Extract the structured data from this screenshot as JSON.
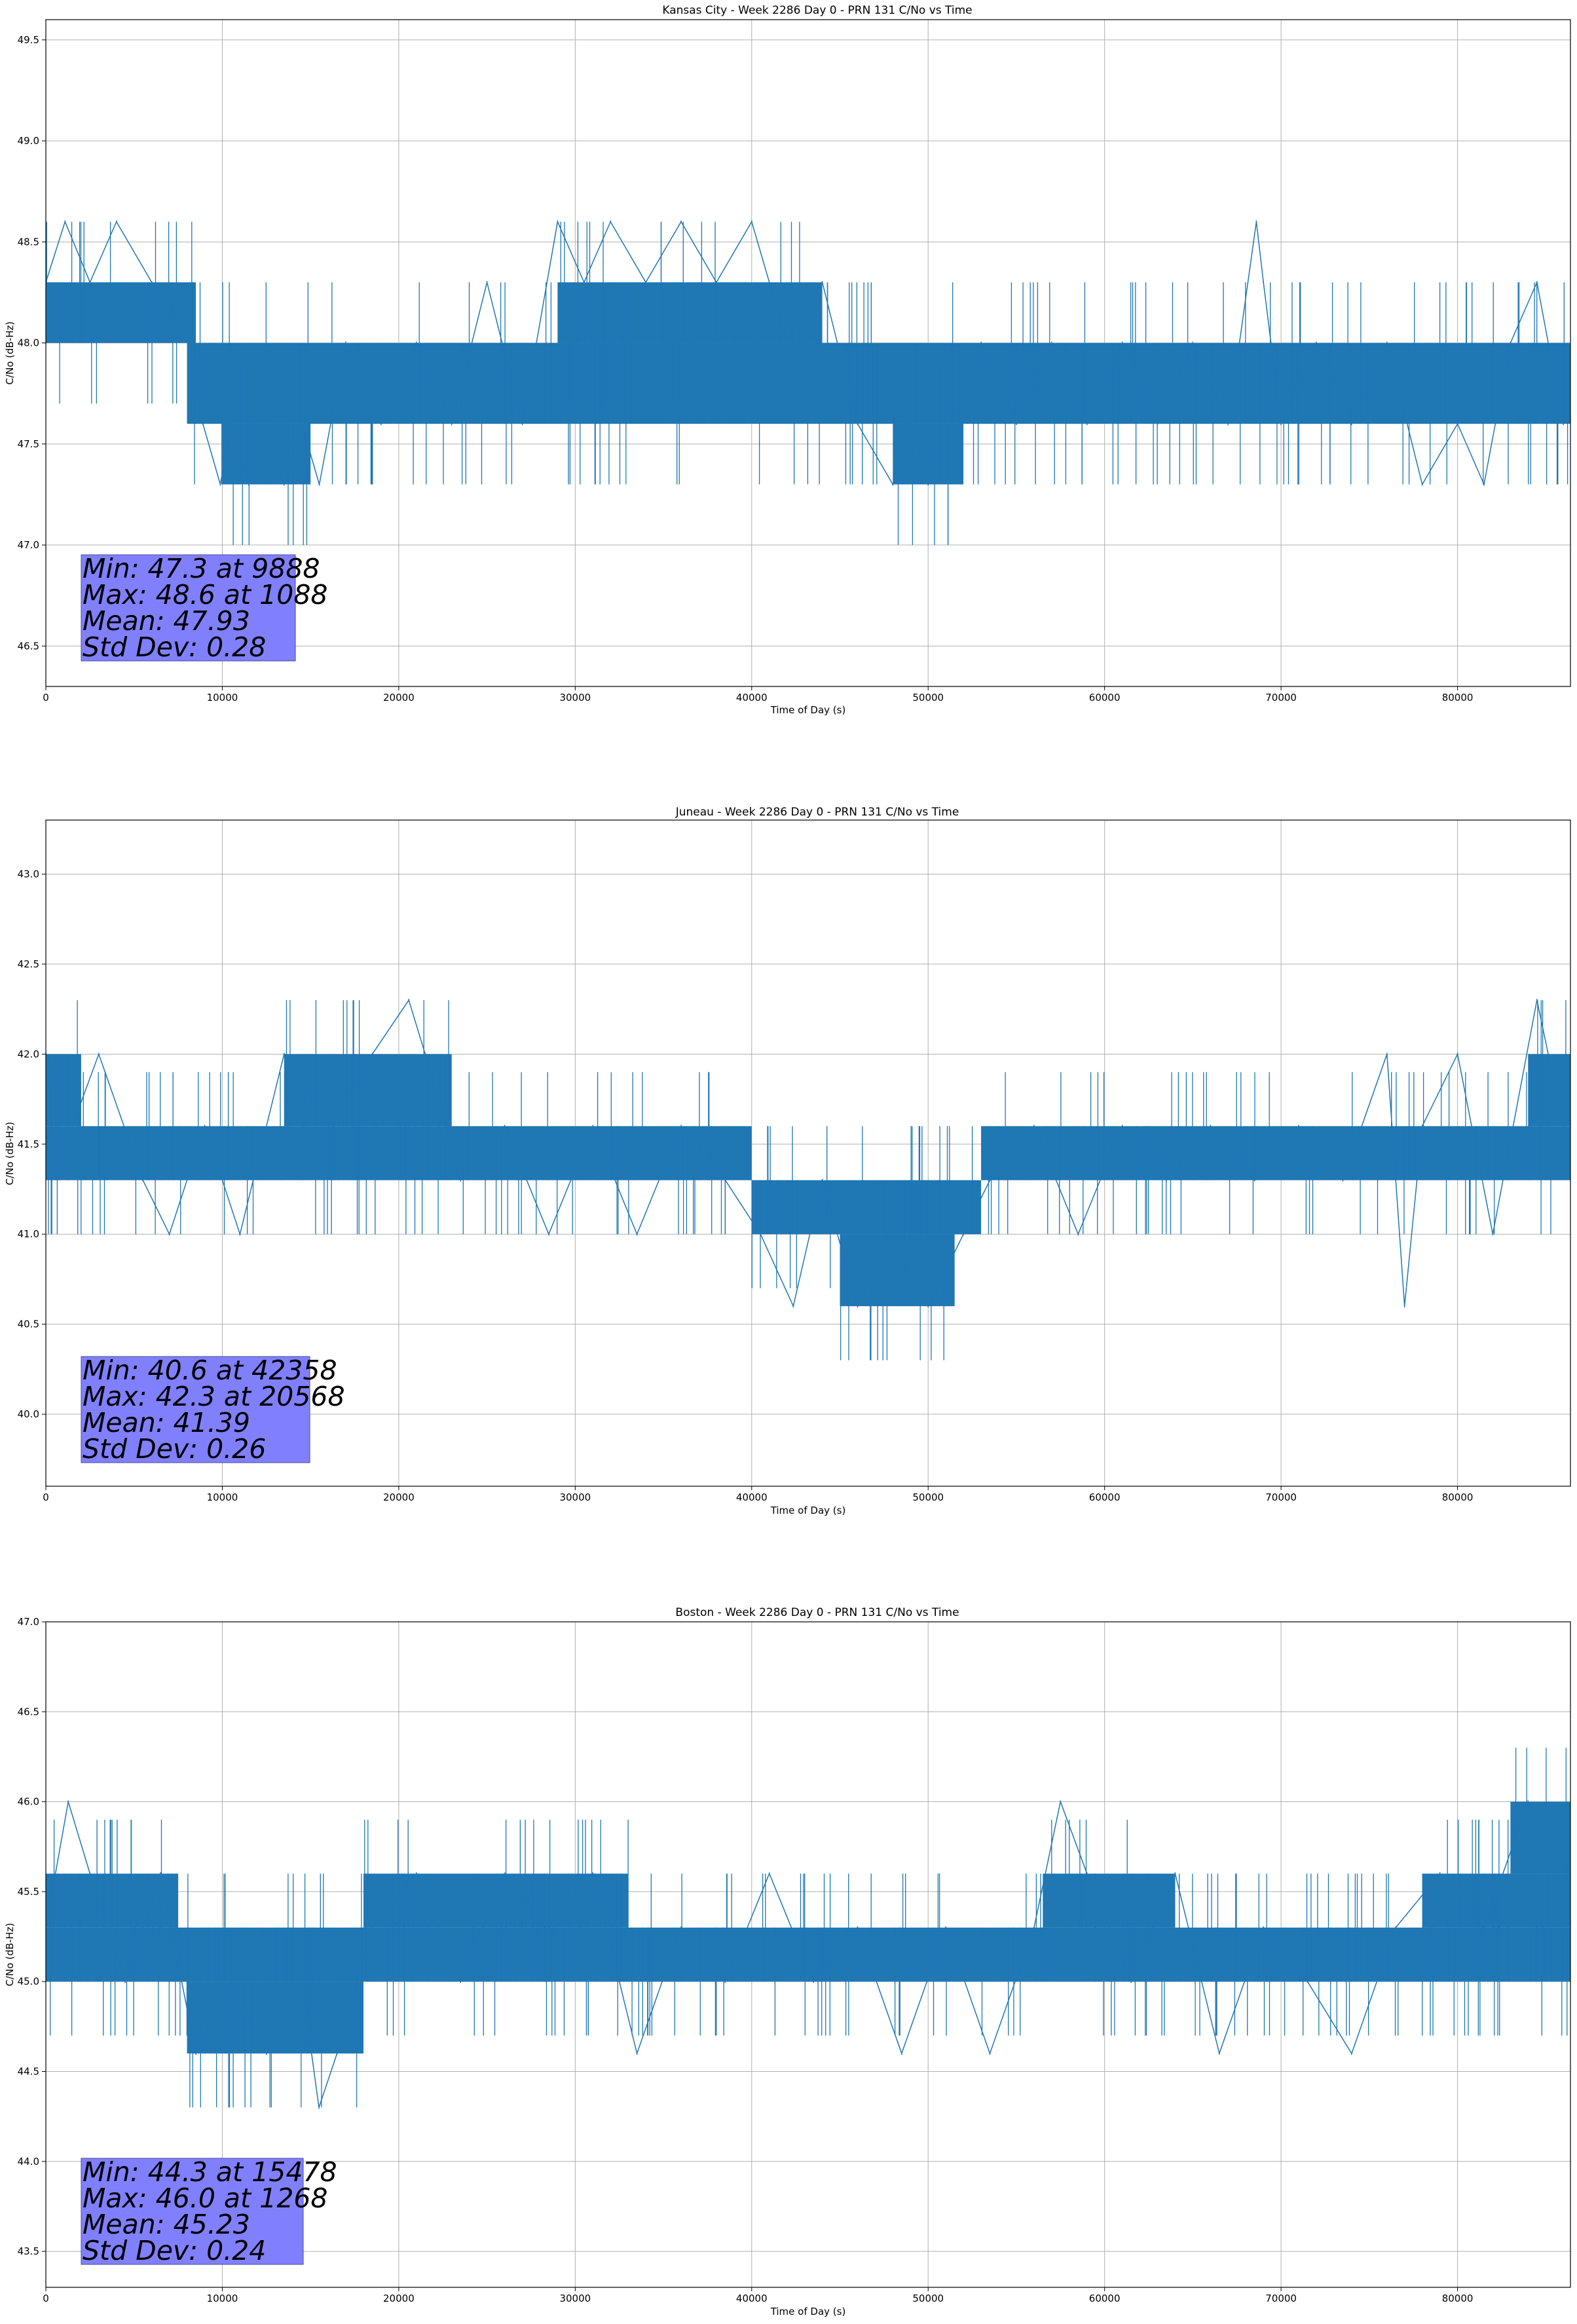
{
  "chart_data": [
    {
      "type": "line",
      "title": "Kansas City - Week 2286 Day 0 - PRN 131 C/No vs Time",
      "xlabel": "Time of Day (s)",
      "ylabel": "C/No (dB-Hz)",
      "xlim": [
        0,
        86400
      ],
      "ylim": [
        46.3,
        49.6
      ],
      "xticks": [
        0,
        10000,
        20000,
        30000,
        40000,
        50000,
        60000,
        70000,
        80000
      ],
      "yticks": [
        "46.5",
        "47.0",
        "47.5",
        "48.0",
        "48.5",
        "49.0",
        "49.5"
      ],
      "grid": true,
      "series_color": "#1f77b4",
      "bands": [
        {
          "x": [
            0,
            8500
          ],
          "y": [
            48.0,
            48.3
          ]
        },
        {
          "x": [
            8000,
            86400
          ],
          "y": [
            47.6,
            48.0
          ]
        },
        {
          "x": [
            29000,
            44000
          ],
          "y": [
            48.0,
            48.3
          ]
        },
        {
          "x": [
            10000,
            15000
          ],
          "y": [
            47.3,
            47.6
          ]
        },
        {
          "x": [
            48000,
            52000
          ],
          "y": [
            47.3,
            47.6
          ]
        }
      ],
      "series": {
        "x": [
          0,
          1088,
          2500,
          4000,
          6000,
          8400,
          8900,
          9888,
          10500,
          11500,
          12500,
          13500,
          14500,
          15500,
          17000,
          19000,
          21000,
          23000,
          25000,
          27000,
          29000,
          30500,
          32000,
          34000,
          36000,
          38000,
          40000,
          42000,
          44000,
          46000,
          48000,
          49000,
          50000,
          51500,
          53000,
          55000,
          57000,
          59000,
          61000,
          63000,
          65000,
          67000,
          68600,
          69000,
          70000,
          72000,
          74000,
          76000,
          78000,
          80000,
          81500,
          83000,
          84500,
          86000
        ],
        "y": [
          48.3,
          48.6,
          48.3,
          48.6,
          48.3,
          48.0,
          47.6,
          47.3,
          47.6,
          47.3,
          47.6,
          47.3,
          47.6,
          47.3,
          48.0,
          47.6,
          48.0,
          47.6,
          48.3,
          47.6,
          48.6,
          48.3,
          48.6,
          48.3,
          48.6,
          48.3,
          48.6,
          48.0,
          48.3,
          47.6,
          47.3,
          47.6,
          47.3,
          47.6,
          48.0,
          47.6,
          48.0,
          47.6,
          48.0,
          47.6,
          48.0,
          47.6,
          48.6,
          48.3,
          47.6,
          48.0,
          47.6,
          48.0,
          47.3,
          47.6,
          47.3,
          48.0,
          48.3,
          47.6
        ]
      },
      "stats": {
        "min": "Min: 47.3 at 9888",
        "max": "Max: 48.6 at 1088",
        "mean": "Mean: 47.93",
        "std": "Std Dev: 0.28"
      }
    },
    {
      "type": "line",
      "title": "Juneau - Week 2286 Day 0 - PRN 131 C/No vs Time",
      "xlabel": "Time of Day (s)",
      "ylabel": "C/No (dB-Hz)",
      "xlim": [
        0,
        86400
      ],
      "ylim": [
        39.6,
        43.3
      ],
      "xticks": [
        0,
        10000,
        20000,
        30000,
        40000,
        50000,
        60000,
        70000,
        80000
      ],
      "yticks": [
        "40.0",
        "40.5",
        "41.0",
        "41.5",
        "42.0",
        "42.5",
        "43.0"
      ],
      "grid": true,
      "series_color": "#1f77b4",
      "bands": [
        {
          "x": [
            0,
            2000
          ],
          "y": [
            41.6,
            42.0
          ]
        },
        {
          "x": [
            0,
            40000
          ],
          "y": [
            41.3,
            41.6
          ]
        },
        {
          "x": [
            13500,
            23000
          ],
          "y": [
            41.6,
            42.0
          ]
        },
        {
          "x": [
            40000,
            53000
          ],
          "y": [
            41.0,
            41.3
          ]
        },
        {
          "x": [
            45000,
            51500
          ],
          "y": [
            40.6,
            41.0
          ]
        },
        {
          "x": [
            53000,
            86400
          ],
          "y": [
            41.3,
            41.6
          ]
        },
        {
          "x": [
            84000,
            86400
          ],
          "y": [
            41.6,
            42.0
          ]
        }
      ],
      "series": {
        "x": [
          0,
          1500,
          3000,
          5500,
          7000,
          9000,
          11000,
          13500,
          16000,
          18500,
          20568,
          21500,
          23500,
          26000,
          28500,
          31000,
          33500,
          36000,
          38500,
          40500,
          42358,
          44000,
          46000,
          48000,
          50000,
          52000,
          53500,
          56000,
          58500,
          61000,
          63500,
          66000,
          68500,
          71000,
          73500,
          76000,
          77000,
          78000,
          80000,
          82000,
          84500,
          86000
        ],
        "y": [
          42.0,
          41.6,
          42.0,
          41.3,
          41.0,
          41.6,
          41.0,
          42.0,
          41.6,
          42.0,
          42.3,
          42.0,
          41.3,
          41.6,
          41.0,
          41.6,
          41.0,
          41.6,
          41.3,
          41.0,
          40.6,
          41.3,
          40.6,
          41.0,
          40.6,
          41.0,
          41.3,
          41.6,
          41.0,
          41.6,
          41.3,
          41.6,
          41.3,
          41.6,
          41.3,
          42.0,
          40.6,
          41.6,
          42.0,
          41.0,
          42.3,
          41.6
        ]
      },
      "stats": {
        "min": "Min: 40.6 at 42358",
        "max": "Max: 42.3 at 20568",
        "mean": "Mean: 41.39",
        "std": "Std Dev: 0.26"
      }
    },
    {
      "type": "line",
      "title": "Boston - Week 2286 Day 0 - PRN 131 C/No vs Time",
      "xlabel": "Time of Day (s)",
      "ylabel": "C/No (dB-Hz)",
      "xlim": [
        0,
        86400
      ],
      "ylim": [
        43.3,
        47.0
      ],
      "xticks": [
        0,
        10000,
        20000,
        30000,
        40000,
        50000,
        60000,
        70000,
        80000
      ],
      "yticks": [
        "43.5",
        "44.0",
        "44.5",
        "45.0",
        "45.5",
        "46.0",
        "46.5",
        "47.0"
      ],
      "grid": true,
      "series_color": "#1f77b4",
      "bands": [
        {
          "x": [
            0,
            86400
          ],
          "y": [
            45.0,
            45.3
          ]
        },
        {
          "x": [
            0,
            7500
          ],
          "y": [
            45.3,
            45.6
          ]
        },
        {
          "x": [
            8000,
            18000
          ],
          "y": [
            44.6,
            45.0
          ]
        },
        {
          "x": [
            18000,
            33000
          ],
          "y": [
            45.3,
            45.6
          ]
        },
        {
          "x": [
            56500,
            64000
          ],
          "y": [
            45.3,
            45.6
          ]
        },
        {
          "x": [
            78000,
            86400
          ],
          "y": [
            45.3,
            45.6
          ]
        },
        {
          "x": [
            83000,
            86400
          ],
          "y": [
            45.6,
            46.0
          ]
        }
      ],
      "series": {
        "x": [
          0,
          1268,
          2500,
          4500,
          6500,
          8500,
          10500,
          12500,
          14500,
          15478,
          16500,
          18500,
          21000,
          23500,
          26000,
          28500,
          31000,
          33500,
          36000,
          38500,
          41000,
          43500,
          46000,
          48500,
          51000,
          53500,
          56000,
          57500,
          59000,
          61500,
          64000,
          66500,
          69000,
          71500,
          74000,
          76500,
          79000,
          81500,
          84000,
          86000
        ],
        "y": [
          45.3,
          46.0,
          45.6,
          45.0,
          45.6,
          44.6,
          45.0,
          44.6,
          45.0,
          44.3,
          44.6,
          45.3,
          45.6,
          45.0,
          45.6,
          45.3,
          45.6,
          44.6,
          45.3,
          45.0,
          45.6,
          45.0,
          45.3,
          44.6,
          45.3,
          44.6,
          45.3,
          46.0,
          45.6,
          45.0,
          45.6,
          44.6,
          45.3,
          45.0,
          44.6,
          45.3,
          45.6,
          45.3,
          46.0,
          45.6
        ]
      },
      "stats": {
        "min": "Min: 44.3 at 15478",
        "max": "Max: 46.0 at 1268",
        "mean": "Mean: 45.23",
        "std": "Std Dev: 0.24"
      }
    }
  ]
}
